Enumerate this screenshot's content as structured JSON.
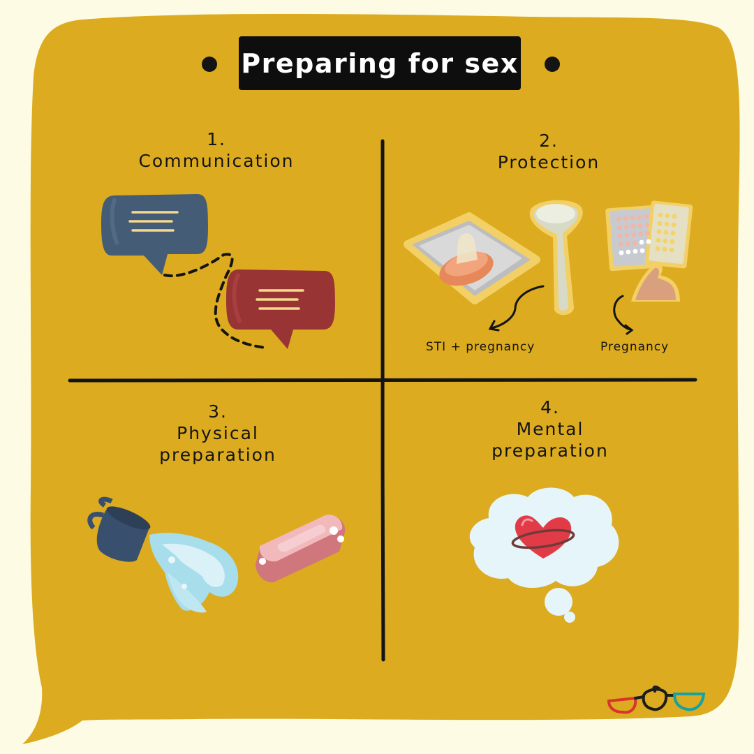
{
  "title": "Preparing for sex",
  "colors": {
    "background": "#fdfbe3",
    "bubble": "#dcab1f",
    "ink": "#141414"
  },
  "quadrants": [
    {
      "number": "1.",
      "lines": [
        "Communication"
      ]
    },
    {
      "number": "2.",
      "lines": [
        "Protection"
      ]
    },
    {
      "number": "3.",
      "lines": [
        "Physical",
        "preparation"
      ]
    },
    {
      "number": "4.",
      "lines": [
        "Mental",
        "preparation"
      ]
    }
  ],
  "protection": {
    "condom_caption": "STI + pregnancy",
    "pill_caption": "Pregnancy"
  },
  "icons": {
    "communication": [
      "speech-bubble-blue-icon",
      "speech-bubble-red-icon"
    ],
    "protection": [
      "condom-packet-icon",
      "female-condom-icon",
      "pill-pack-icon"
    ],
    "physical": [
      "water-jug-icon",
      "water-splash-icon",
      "soap-bar-icon"
    ],
    "mental": [
      "thought-cloud-icon",
      "heart-icon"
    ],
    "brand": "glasses-logo-icon"
  }
}
